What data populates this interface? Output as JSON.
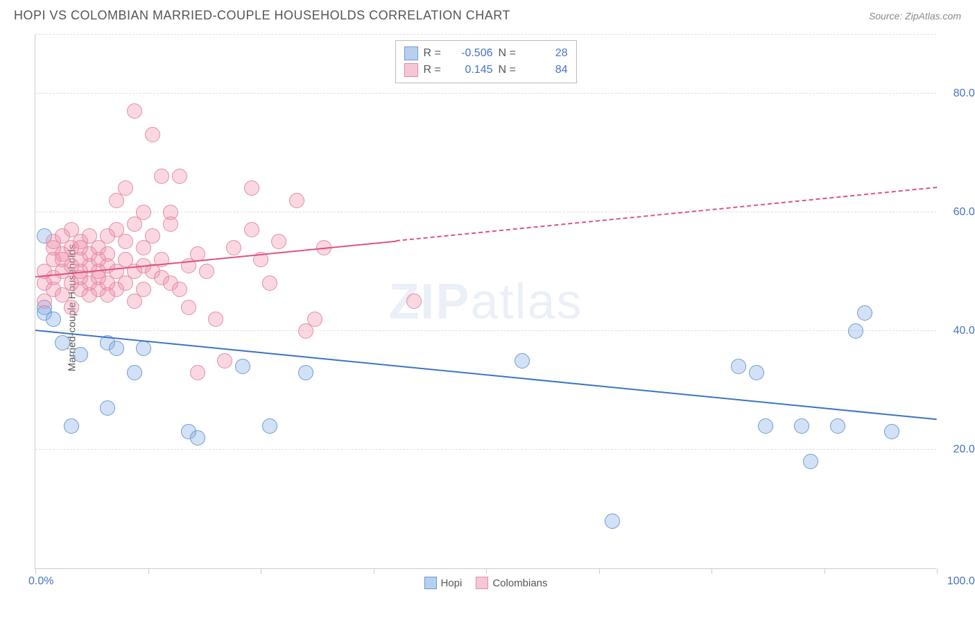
{
  "title": "HOPI VS COLOMBIAN MARRIED-COUPLE HOUSEHOLDS CORRELATION CHART",
  "source": "Source: ZipAtlas.com",
  "watermark_bold": "ZIP",
  "watermark_rest": "atlas",
  "chart": {
    "type": "scatter",
    "ylabel": "Married-couple Households",
    "xlim": [
      0,
      100
    ],
    "ylim": [
      0,
      90
    ],
    "yticklabels": [
      {
        "y": 20,
        "label": "20.0%"
      },
      {
        "y": 40,
        "label": "40.0%"
      },
      {
        "y": 60,
        "label": "60.0%"
      },
      {
        "y": 80,
        "label": "80.0%"
      }
    ],
    "xticks": [
      0,
      12.5,
      25,
      37.5,
      50,
      62.5,
      75,
      87.5,
      100
    ],
    "xlabel_min": "0.0%",
    "xlabel_max": "100.0%",
    "grid_color": "#dddddd",
    "background": "#ffffff",
    "marker_radius": 11,
    "marker_border_width": 1.5,
    "series": [
      {
        "name": "Hopi",
        "fill": "rgba(130,170,230,0.35)",
        "stroke": "#6b9bd1",
        "swatch_fill": "#b7d0f0",
        "swatch_stroke": "#6b9bd1",
        "R": "-0.506",
        "N": "28",
        "trend": {
          "x1": 0,
          "y1": 40,
          "x2": 100,
          "y2": 25,
          "color": "#3a74c4",
          "dash_from_x": null
        },
        "points": [
          [
            1,
            44
          ],
          [
            1,
            43
          ],
          [
            1,
            56
          ],
          [
            2,
            42
          ],
          [
            3,
            38
          ],
          [
            4,
            24
          ],
          [
            5,
            36
          ],
          [
            8,
            27
          ],
          [
            8,
            38
          ],
          [
            9,
            37
          ],
          [
            11,
            33
          ],
          [
            12,
            37
          ],
          [
            17,
            23
          ],
          [
            18,
            22
          ],
          [
            23,
            34
          ],
          [
            26,
            24
          ],
          [
            30,
            33
          ],
          [
            54,
            35
          ],
          [
            64,
            8
          ],
          [
            78,
            34
          ],
          [
            80,
            33
          ],
          [
            81,
            24
          ],
          [
            85,
            24
          ],
          [
            86,
            18
          ],
          [
            89,
            24
          ],
          [
            91,
            40
          ],
          [
            92,
            43
          ],
          [
            95,
            23
          ]
        ]
      },
      {
        "name": "Colombians",
        "fill": "rgba(240,140,170,0.35)",
        "stroke": "#e08da8",
        "swatch_fill": "#f5c7d6",
        "swatch_stroke": "#e08da8",
        "R": "0.145",
        "N": "84",
        "trend": {
          "x1": 0,
          "y1": 49,
          "x2": 100,
          "y2": 64,
          "color": "#e0517a",
          "dash_from_x": 40
        },
        "points": [
          [
            1,
            48
          ],
          [
            1,
            50
          ],
          [
            1,
            45
          ],
          [
            2,
            52
          ],
          [
            2,
            54
          ],
          [
            2,
            47
          ],
          [
            2,
            55
          ],
          [
            2,
            49
          ],
          [
            3,
            50
          ],
          [
            3,
            53
          ],
          [
            3,
            46
          ],
          [
            3,
            56
          ],
          [
            3,
            52
          ],
          [
            4,
            48
          ],
          [
            4,
            54
          ],
          [
            4,
            51
          ],
          [
            4,
            44
          ],
          [
            4,
            57
          ],
          [
            5,
            50
          ],
          [
            5,
            52
          ],
          [
            5,
            55
          ],
          [
            5,
            47
          ],
          [
            5,
            49
          ],
          [
            5,
            54
          ],
          [
            6,
            51
          ],
          [
            6,
            48
          ],
          [
            6,
            53
          ],
          [
            6,
            46
          ],
          [
            6,
            56
          ],
          [
            7,
            50
          ],
          [
            7,
            52
          ],
          [
            7,
            47
          ],
          [
            7,
            54
          ],
          [
            7,
            49
          ],
          [
            8,
            53
          ],
          [
            8,
            48
          ],
          [
            8,
            51
          ],
          [
            8,
            56
          ],
          [
            8,
            46
          ],
          [
            9,
            50
          ],
          [
            9,
            57
          ],
          [
            9,
            47
          ],
          [
            9,
            62
          ],
          [
            10,
            52
          ],
          [
            10,
            48
          ],
          [
            10,
            64
          ],
          [
            10,
            55
          ],
          [
            11,
            50
          ],
          [
            11,
            45
          ],
          [
            11,
            58
          ],
          [
            11,
            77
          ],
          [
            12,
            51
          ],
          [
            12,
            47
          ],
          [
            12,
            54
          ],
          [
            12,
            60
          ],
          [
            13,
            50
          ],
          [
            13,
            56
          ],
          [
            13,
            73
          ],
          [
            14,
            49
          ],
          [
            14,
            52
          ],
          [
            14,
            66
          ],
          [
            15,
            48
          ],
          [
            15,
            58
          ],
          [
            15,
            60
          ],
          [
            16,
            66
          ],
          [
            16,
            47
          ],
          [
            17,
            51
          ],
          [
            17,
            44
          ],
          [
            18,
            33
          ],
          [
            18,
            53
          ],
          [
            19,
            50
          ],
          [
            20,
            42
          ],
          [
            21,
            35
          ],
          [
            22,
            54
          ],
          [
            24,
            64
          ],
          [
            24,
            57
          ],
          [
            25,
            52
          ],
          [
            26,
            48
          ],
          [
            27,
            55
          ],
          [
            29,
            62
          ],
          [
            30,
            40
          ],
          [
            31,
            42
          ],
          [
            32,
            54
          ],
          [
            42,
            45
          ]
        ]
      }
    ]
  },
  "legend": {
    "r_label": "R =",
    "n_label": "N ="
  },
  "bottom_legend": [
    "Hopi",
    "Colombians"
  ]
}
